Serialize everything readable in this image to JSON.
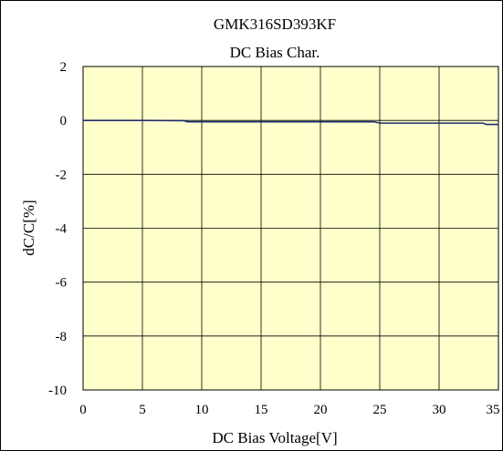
{
  "chart_data": {
    "type": "line",
    "title": "GMK316SD393KF",
    "subtitle": "DC Bias Char.",
    "xlabel": "DC Bias Voltage[V]",
    "ylabel": "dC/C[%]",
    "xlim": [
      0,
      35
    ],
    "ylim": [
      -10,
      2
    ],
    "x_ticks": [
      0,
      5,
      10,
      15,
      20,
      25,
      30,
      35
    ],
    "y_ticks": [
      2,
      0,
      -2,
      -4,
      -6,
      -8,
      -10
    ],
    "grid": true,
    "legend": "none",
    "colors": {
      "plot_background": "#ffffcc",
      "line": "#1f2d6e",
      "grid": "#000000"
    },
    "series": [
      {
        "x": [
          0,
          5,
          8.5,
          8.8,
          10,
          15,
          20,
          24.5,
          25,
          30,
          33.7,
          34,
          35
        ],
        "y": [
          0.0,
          0.0,
          -0.01,
          -0.05,
          -0.05,
          -0.05,
          -0.05,
          -0.05,
          -0.1,
          -0.1,
          -0.1,
          -0.15,
          -0.15
        ]
      }
    ]
  }
}
